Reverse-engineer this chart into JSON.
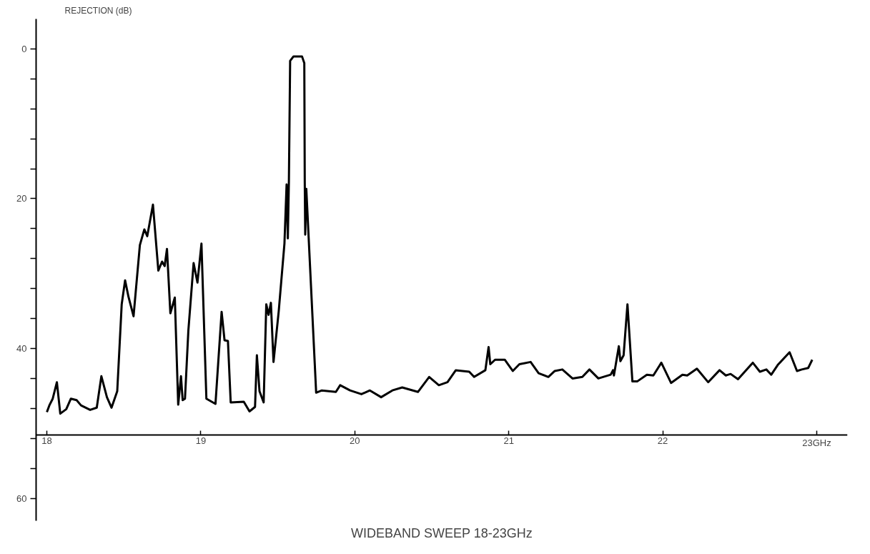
{
  "chart_data": {
    "type": "line",
    "title": "WIDEBAND SWEEP 18-23GHz",
    "ylabel": "REJECTION (dB)",
    "xlim": [
      17.93,
      23.2
    ],
    "ylim": [
      63,
      -4
    ],
    "xticks": [
      18,
      19,
      20,
      21,
      22,
      {
        "value": 23,
        "label": "23GHz"
      }
    ],
    "yticks": [
      0,
      {
        "value": 4,
        "label": null
      },
      {
        "value": 8,
        "label": null
      },
      {
        "value": 12,
        "label": null
      },
      {
        "value": 16,
        "label": null
      },
      20,
      {
        "value": 24,
        "label": null
      },
      {
        "value": 28,
        "label": null
      },
      {
        "value": 32,
        "label": null
      },
      {
        "value": 36,
        "label": null
      },
      40,
      {
        "value": 44,
        "label": null
      },
      {
        "value": 48,
        "label": null
      },
      {
        "value": 52,
        "label": null
      },
      {
        "value": 56,
        "label": null
      },
      60
    ],
    "grid": false,
    "marker": "none",
    "line_style": "solid",
    "series": [
      {
        "color": "#000000",
        "x": [
          18.0,
          18.016,
          18.038,
          18.065,
          18.087,
          18.126,
          18.156,
          18.193,
          18.222,
          18.281,
          18.324,
          18.354,
          18.39,
          18.42,
          18.457,
          18.486,
          18.508,
          18.53,
          18.563,
          18.604,
          18.633,
          18.652,
          18.689,
          18.724,
          18.748,
          18.765,
          18.78,
          18.802,
          18.831,
          18.853,
          18.871,
          18.882,
          18.897,
          18.919,
          18.953,
          18.978,
          19.004,
          19.036,
          19.095,
          19.135,
          19.154,
          19.176,
          19.194,
          19.279,
          19.316,
          19.352,
          19.364,
          19.381,
          19.408,
          19.425,
          19.44,
          19.455,
          19.472,
          19.506,
          19.543,
          19.557,
          19.565,
          19.572,
          19.58,
          19.602,
          19.657,
          19.672,
          19.675,
          19.678,
          19.685,
          19.749,
          19.786,
          19.877,
          19.905,
          19.969,
          20.043,
          20.098,
          20.171,
          20.244,
          20.308,
          20.41,
          20.483,
          20.546,
          20.602,
          20.656,
          20.743,
          20.775,
          20.848,
          20.869,
          20.88,
          20.911,
          20.974,
          21.026,
          21.069,
          21.142,
          21.194,
          21.257,
          21.299,
          21.348,
          21.414,
          21.478,
          21.524,
          21.582,
          21.662,
          21.677,
          21.683,
          21.715,
          21.725,
          21.746,
          21.771,
          21.803,
          21.834,
          21.897,
          21.939,
          21.991,
          22.054,
          22.128,
          22.159,
          22.222,
          22.295,
          22.369,
          22.41,
          22.441,
          22.489,
          22.585,
          22.631,
          22.673,
          22.705,
          22.747,
          22.824,
          22.872,
          22.903,
          22.945,
          22.971
        ],
        "values": [
          48.5,
          47.6,
          46.7,
          44.5,
          48.7,
          48.1,
          46.7,
          46.9,
          47.6,
          48.2,
          47.9,
          43.7,
          46.5,
          47.9,
          45.7,
          34.1,
          30.9,
          33.1,
          35.7,
          26.2,
          24.1,
          25.0,
          20.8,
          29.6,
          28.4,
          29.0,
          26.7,
          35.3,
          33.2,
          47.5,
          43.7,
          46.9,
          46.7,
          37.6,
          28.6,
          31.2,
          26.0,
          46.7,
          47.4,
          35.1,
          38.9,
          39.0,
          47.2,
          47.1,
          48.4,
          47.8,
          40.9,
          45.7,
          47.2,
          34.1,
          35.5,
          33.9,
          41.8,
          35.0,
          26.0,
          18.1,
          25.3,
          17.6,
          1.6,
          1.0,
          1.0,
          1.9,
          17.8,
          24.8,
          18.7,
          45.9,
          45.6,
          45.8,
          44.9,
          45.6,
          46.1,
          45.6,
          46.5,
          45.6,
          45.2,
          45.8,
          43.8,
          44.9,
          44.5,
          42.9,
          43.1,
          43.8,
          42.9,
          39.8,
          42.1,
          41.5,
          41.5,
          43.0,
          42.1,
          41.8,
          43.3,
          43.8,
          43.0,
          42.8,
          44.0,
          43.8,
          42.8,
          44.0,
          43.5,
          42.9,
          43.6,
          39.7,
          41.7,
          40.9,
          34.1,
          44.4,
          44.4,
          43.5,
          43.6,
          41.9,
          44.6,
          43.5,
          43.6,
          42.7,
          44.5,
          42.9,
          43.6,
          43.4,
          44.1,
          41.9,
          43.1,
          42.8,
          43.5,
          42.2,
          40.5,
          43.0,
          42.8,
          42.6,
          41.5
        ]
      }
    ]
  }
}
